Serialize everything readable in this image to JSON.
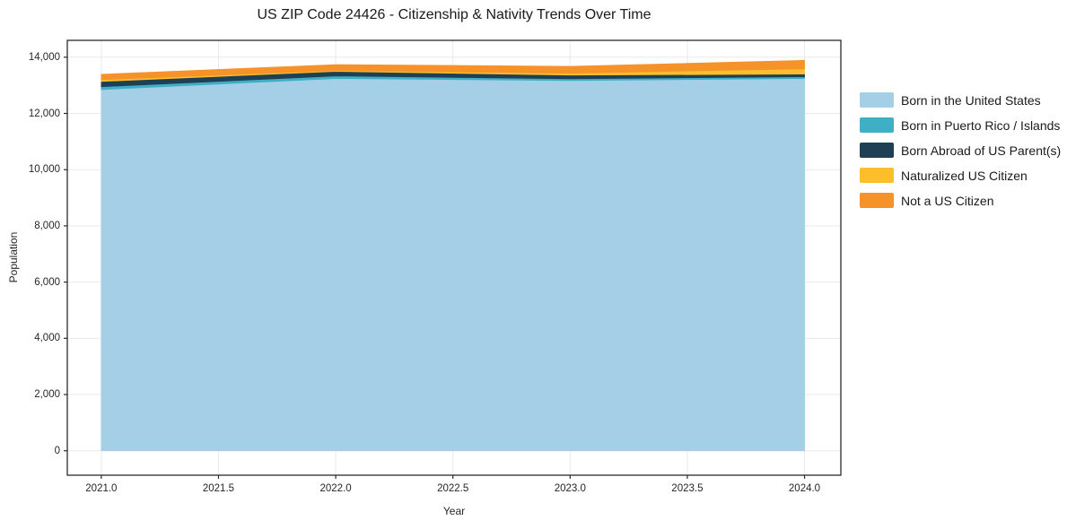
{
  "page": {
    "title": "US ZIP Code 24426 - Citizenship & Nativity Trends Over Time"
  },
  "chart_data": {
    "type": "area",
    "stacked": true,
    "title": "US ZIP Code 24426 - Citizenship & Nativity Trends Over Time",
    "xlabel": "Year",
    "ylabel": "Population",
    "x": [
      2021,
      2022,
      2023,
      2024
    ],
    "series": [
      {
        "name": "Born in the United States",
        "color": "#a4cfe6",
        "values": [
          12850,
          13240,
          13170,
          13240
        ]
      },
      {
        "name": "Born in Puerto Rico / Islands",
        "color": "#3fafc7",
        "values": [
          100,
          95,
          65,
          65
        ]
      },
      {
        "name": "Born Abroad of US Parent(s)",
        "color": "#1f4054",
        "values": [
          190,
          160,
          130,
          95
        ]
      },
      {
        "name": "Naturalized US Citizen",
        "color": "#fcbf2b",
        "values": [
          60,
          30,
          65,
          190
        ]
      },
      {
        "name": "Not a US Citizen",
        "color": "#f5932a",
        "values": [
          190,
          210,
          245,
          300
        ]
      }
    ],
    "totals": [
      13390,
      13735,
      13675,
      13890
    ],
    "xticks": [
      2021.0,
      2021.5,
      2022.0,
      2022.5,
      2023.0,
      2023.5,
      2024.0
    ],
    "xtick_labels": [
      "2021.0",
      "2021.5",
      "2022.0",
      "2022.5",
      "2023.0",
      "2023.5",
      "2024.0"
    ],
    "yticks": [
      0,
      2000,
      4000,
      6000,
      8000,
      10000,
      12000,
      14000
    ],
    "ytick_labels": [
      "0",
      "2,000",
      "4,000",
      "6,000",
      "8,000",
      "10,000",
      "12,000",
      "14,000"
    ],
    "xlim": [
      2020.855,
      2024.155
    ],
    "ylim": [
      -870,
      14600
    ],
    "grid": true,
    "grid_color": "#e9e9e9",
    "spine_color": "#2b2b2b",
    "legend_position": "right"
  }
}
